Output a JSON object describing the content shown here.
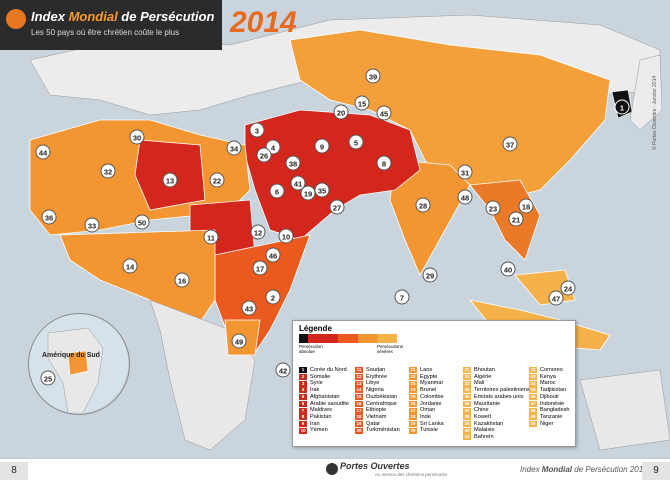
{
  "header": {
    "title_part1": "Index ",
    "title_highlight": "Mondial",
    "title_part2": " de Persécution",
    "subtitle": "Les 50 pays où être chrétien coûte le plus",
    "year": "2014",
    "credit": "© Portes Ouvertes - Janvier 2014"
  },
  "inset": {
    "label": "Amérique du Sud"
  },
  "legend": {
    "title": "Légende",
    "low_label": "Persécution absolue",
    "high_label": "Persécutions sévères",
    "colors": {
      "absolute": "#111111",
      "extreme": "#d3261c",
      "severe": "#ea5a1e",
      "high": "#f39530",
      "moderate": "#f5b24a"
    },
    "entries": [
      {
        "rank": "1",
        "name": "Corée du Nord"
      },
      {
        "rank": "2",
        "name": "Somalie"
      },
      {
        "rank": "3",
        "name": "Syrie"
      },
      {
        "rank": "4",
        "name": "Irak"
      },
      {
        "rank": "5",
        "name": "Afghanistan"
      },
      {
        "rank": "6",
        "name": "Arabie saoudite"
      },
      {
        "rank": "7",
        "name": "Maldives"
      },
      {
        "rank": "8",
        "name": "Pakistan"
      },
      {
        "rank": "9",
        "name": "Iran"
      },
      {
        "rank": "10",
        "name": "Yémen"
      },
      {
        "rank": "11",
        "name": "Soudan"
      },
      {
        "rank": "12",
        "name": "Erythrée"
      },
      {
        "rank": "13",
        "name": "Libye"
      },
      {
        "rank": "14",
        "name": "Nigeria"
      },
      {
        "rank": "15",
        "name": "Ouzbékistan"
      },
      {
        "rank": "16",
        "name": "Centrafrique"
      },
      {
        "rank": "17",
        "name": "Ethiopie"
      },
      {
        "rank": "18",
        "name": "Vietnam"
      },
      {
        "rank": "19",
        "name": "Qatar"
      },
      {
        "rank": "20",
        "name": "Turkménistan"
      },
      {
        "rank": "21",
        "name": "Laos"
      },
      {
        "rank": "22",
        "name": "Egypte"
      },
      {
        "rank": "23",
        "name": "Myanmar"
      },
      {
        "rank": "24",
        "name": "Brunei"
      },
      {
        "rank": "25",
        "name": "Colombie"
      },
      {
        "rank": "26",
        "name": "Jordanie"
      },
      {
        "rank": "27",
        "name": "Oman"
      },
      {
        "rank": "28",
        "name": "Inde"
      },
      {
        "rank": "29",
        "name": "Sri Lanka"
      },
      {
        "rank": "30",
        "name": "Tunisie"
      },
      {
        "rank": "31",
        "name": "Bhoutan"
      },
      {
        "rank": "32",
        "name": "Algérie"
      },
      {
        "rank": "33",
        "name": "Mali"
      },
      {
        "rank": "34",
        "name": "Territoires palestiniens"
      },
      {
        "rank": "35",
        "name": "Emirats arabes unis"
      },
      {
        "rank": "36",
        "name": "Mauritanie"
      },
      {
        "rank": "37",
        "name": "Chine"
      },
      {
        "rank": "38",
        "name": "Koweït"
      },
      {
        "rank": "39",
        "name": "Kazakhstan"
      },
      {
        "rank": "40",
        "name": "Malaisie"
      },
      {
        "rank": "41",
        "name": "Bahreïn"
      },
      {
        "rank": "42",
        "name": "Comores"
      },
      {
        "rank": "43",
        "name": "Kenya"
      },
      {
        "rank": "44",
        "name": "Maroc"
      },
      {
        "rank": "45",
        "name": "Tadjikistan"
      },
      {
        "rank": "46",
        "name": "Djibouti"
      },
      {
        "rank": "47",
        "name": "Indonésie"
      },
      {
        "rank": "48",
        "name": "Bangladesh"
      },
      {
        "rank": "49",
        "name": "Tanzanie"
      },
      {
        "rank": "50",
        "name": "Niger"
      }
    ]
  },
  "markers": [
    {
      "n": "1",
      "dark": true
    },
    {
      "n": "2"
    },
    {
      "n": "3"
    },
    {
      "n": "4"
    },
    {
      "n": "5"
    },
    {
      "n": "6"
    },
    {
      "n": "7"
    },
    {
      "n": "8"
    },
    {
      "n": "9"
    },
    {
      "n": "10"
    },
    {
      "n": "11"
    },
    {
      "n": "12"
    },
    {
      "n": "13"
    },
    {
      "n": "14"
    },
    {
      "n": "15"
    },
    {
      "n": "16"
    },
    {
      "n": "17"
    },
    {
      "n": "18"
    },
    {
      "n": "19"
    },
    {
      "n": "20"
    },
    {
      "n": "21"
    },
    {
      "n": "22"
    },
    {
      "n": "23"
    },
    {
      "n": "24"
    },
    {
      "n": "25"
    },
    {
      "n": "26"
    },
    {
      "n": "27"
    },
    {
      "n": "28"
    },
    {
      "n": "29"
    },
    {
      "n": "30"
    },
    {
      "n": "31"
    },
    {
      "n": "32"
    },
    {
      "n": "33"
    },
    {
      "n": "34"
    },
    {
      "n": "35"
    },
    {
      "n": "36"
    },
    {
      "n": "37"
    },
    {
      "n": "38"
    },
    {
      "n": "39"
    },
    {
      "n": "40"
    },
    {
      "n": "41"
    },
    {
      "n": "42"
    },
    {
      "n": "43"
    },
    {
      "n": "44"
    },
    {
      "n": "45"
    },
    {
      "n": "46"
    },
    {
      "n": "47"
    },
    {
      "n": "48"
    },
    {
      "n": "49"
    },
    {
      "n": "50"
    }
  ],
  "footer": {
    "page_left": "8",
    "page_right": "9",
    "brand": "Portes Ouvertes",
    "brand_sub": "Au service des chrétiens persécutés",
    "title_part1": "Index ",
    "title_highlight": "Mondial",
    "title_part2": " de Persécution 2014"
  }
}
